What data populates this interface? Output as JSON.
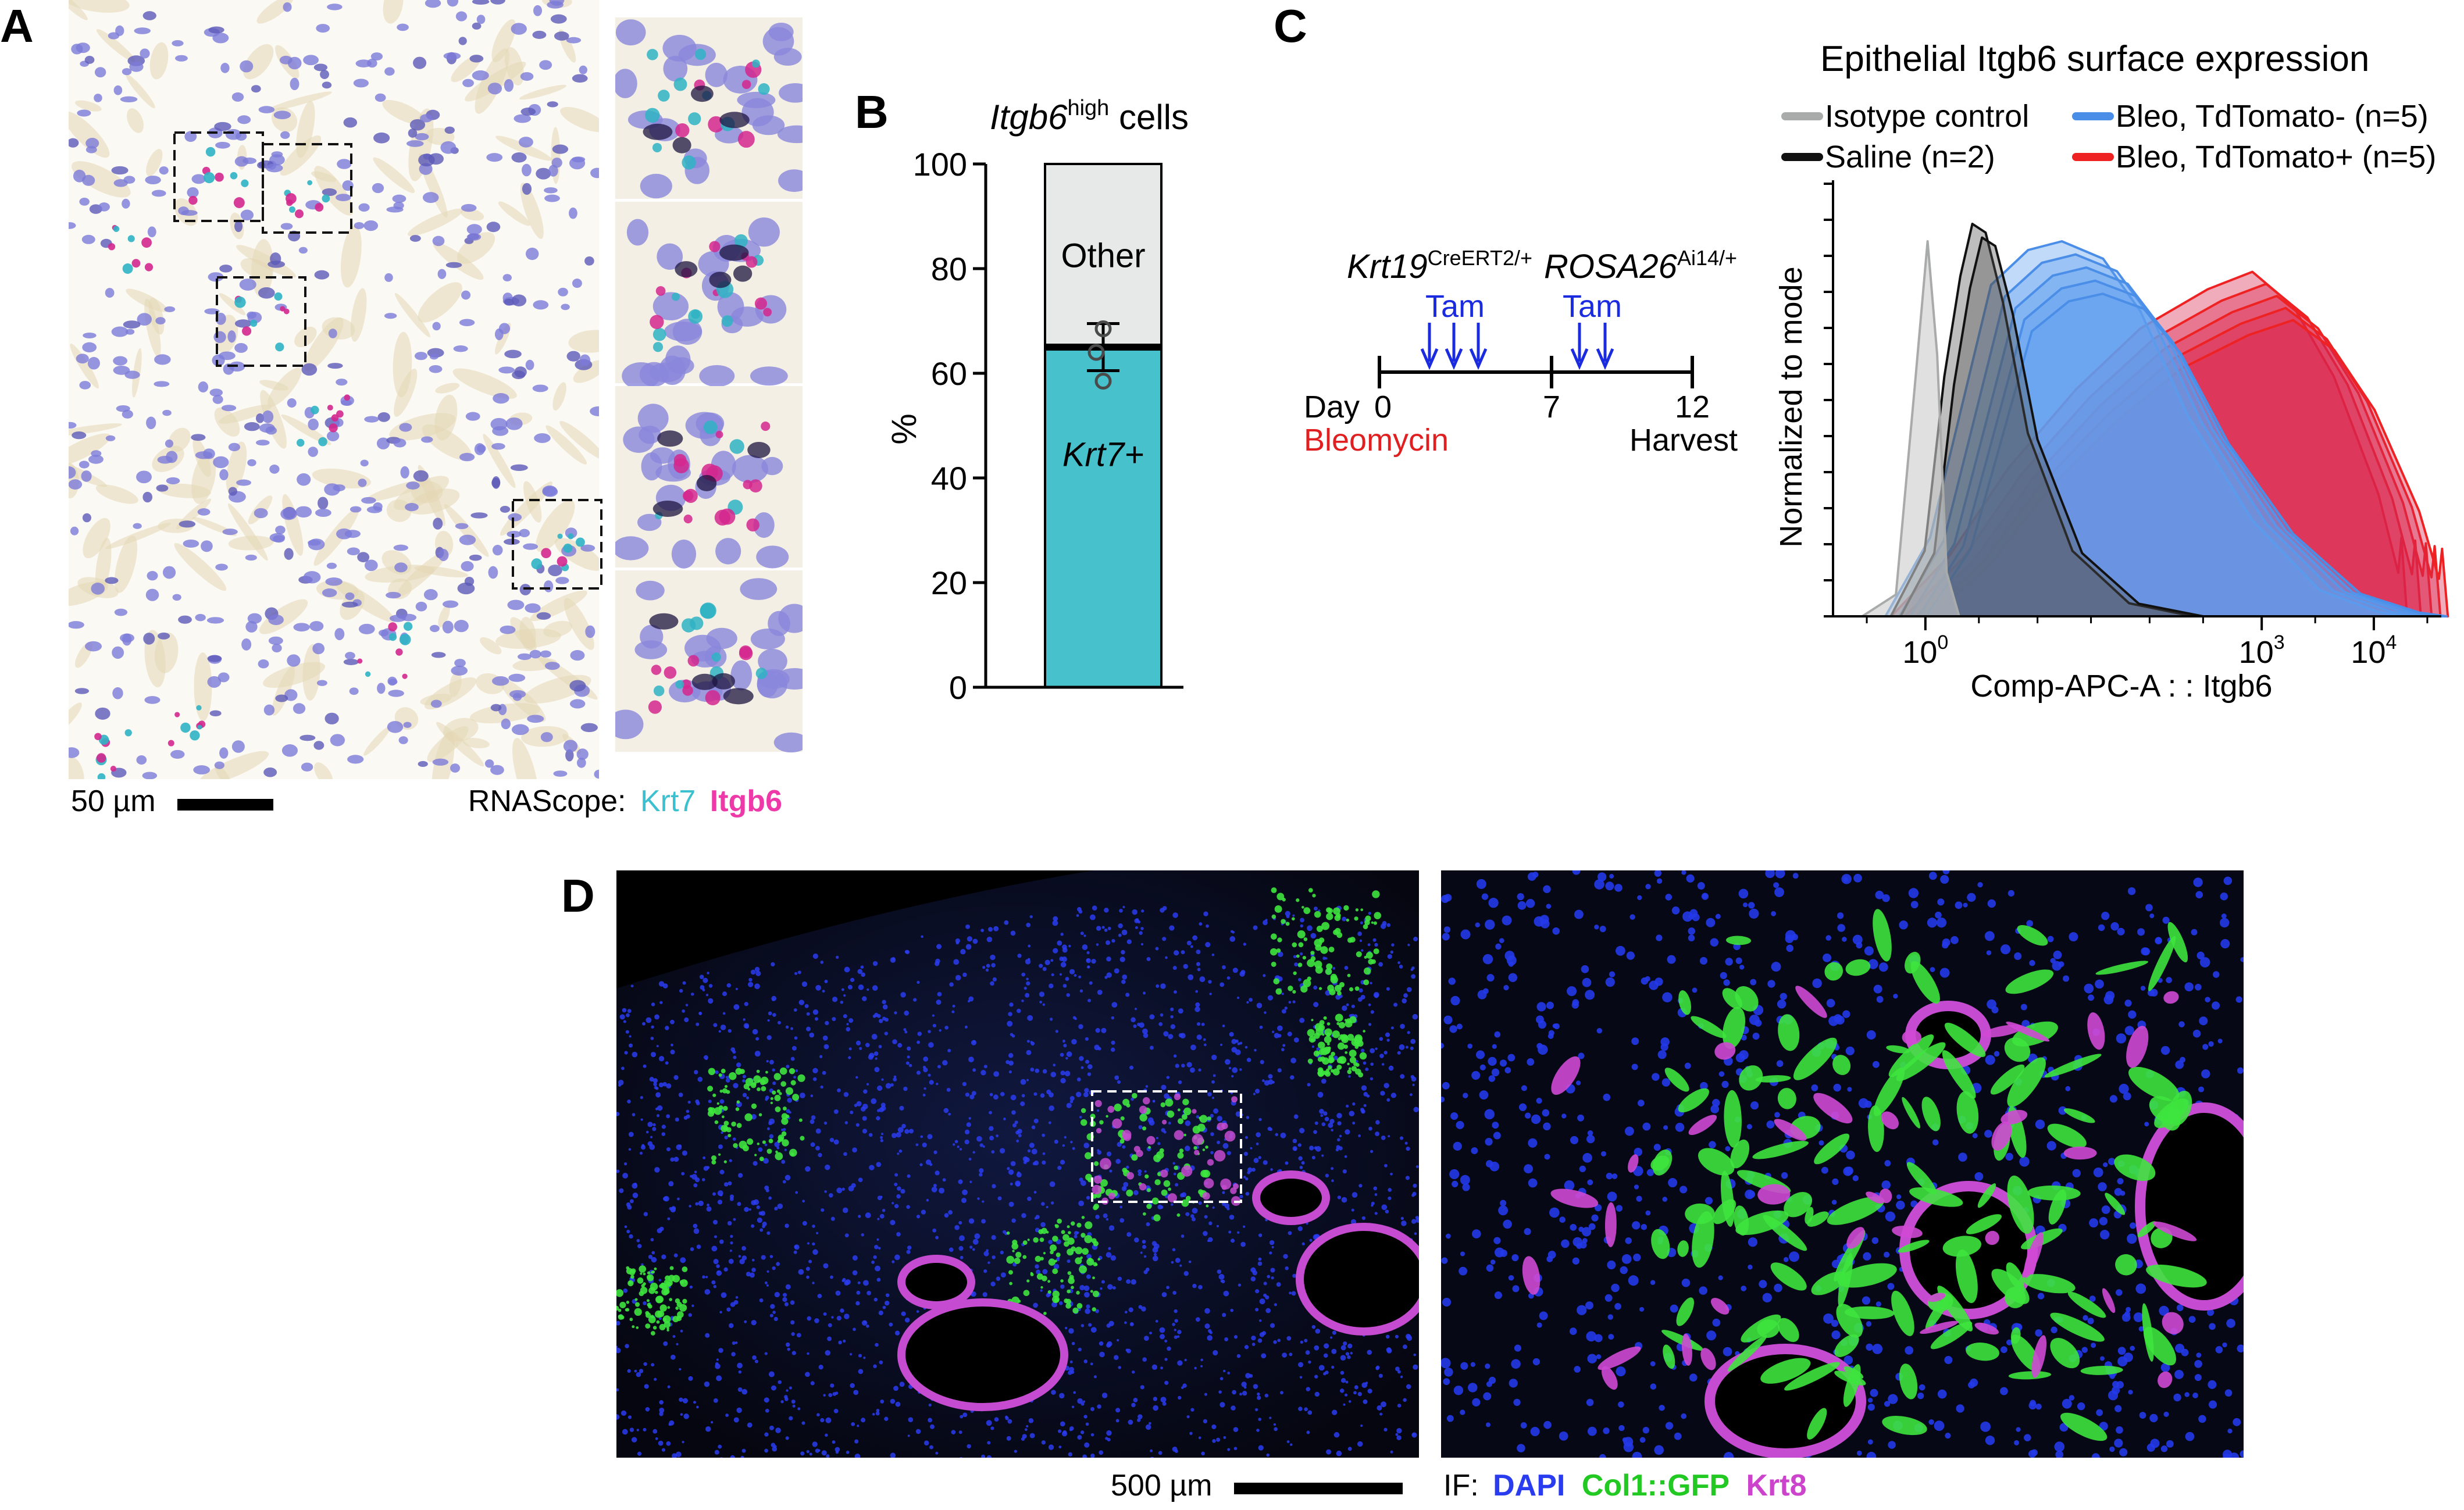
{
  "panels": {
    "a": {
      "label": "A",
      "scalebar": "50 µm",
      "stain_prefix": "RNAScope:",
      "stain_krt7": "Krt7",
      "stain_itgb6": "Itgb6"
    },
    "b": {
      "label": "B",
      "title_gene": "Itgb6",
      "title_sup": "high",
      "title_rest": " cells",
      "ylabel": "%",
      "seg_other": "Other",
      "seg_krt7": "Krt7+"
    },
    "c": {
      "label": "C",
      "gene1": "Krt19",
      "gene1_sup": "CreERT2/+",
      "gene2": "ROSA26",
      "gene2_sup": "Ai14/+",
      "tam1": "Tam",
      "tam2": "Tam",
      "day_label": "Day",
      "days": [
        "0",
        "7",
        "12"
      ],
      "bleomycin": "Bleomycin",
      "harvest": "Harvest",
      "hist_title": "Epithelial Itgb6 surface expression",
      "legend": [
        {
          "name": "Isotype control",
          "color": "#a8aba9"
        },
        {
          "name": "Saline (n=2)",
          "color": "#111111"
        },
        {
          "name": "Bleo, TdTomato- (n=5)",
          "color": "#4a8ee8"
        },
        {
          "name": "Bleo, TdTomato+ (n=5)",
          "color": "#ee2222"
        }
      ],
      "hist_ylabel": "Normalized to mode",
      "hist_xlabel": "Comp-APC-A : : Itgb6",
      "xticks": [
        {
          "base": "10",
          "exp": "0"
        },
        {
          "base": "10",
          "exp": "3"
        },
        {
          "base": "10",
          "exp": "4"
        }
      ]
    },
    "d": {
      "label": "D",
      "scalebar": "500 µm",
      "if_prefix": "IF:",
      "if_dapi": "DAPI",
      "if_col1": "Col1::GFP",
      "if_krt8": "Krt8"
    }
  },
  "colors": {
    "krt7": "#3cc0cf",
    "itgb6": "#ee3aa8",
    "dapi": "#2a3cf0",
    "gfp": "#22dd22",
    "krt8": "#cc44cc",
    "tam": "#1a2be0",
    "bleomycin": "#e02020"
  },
  "chart_data": [
    {
      "type": "bar",
      "title": "Itgb6high cells",
      "ylabel": "%",
      "ylim": [
        0,
        100
      ],
      "yticks": [
        0,
        20,
        40,
        60,
        80,
        100
      ],
      "categories": [
        "Itgb6high cells"
      ],
      "series": [
        {
          "name": "Krt7+",
          "values": [
            65
          ]
        },
        {
          "name": "Other",
          "values": [
            35
          ]
        }
      ],
      "error_bar": {
        "mean": 65,
        "upper": 69.5,
        "lower": 60.5
      },
      "points": [
        68.5,
        64,
        58.5
      ]
    },
    {
      "type": "area",
      "title": "Epithelial Itgb6 surface expression",
      "xlabel": "Comp-APC-A : : Itgb6",
      "ylabel": "Normalized to mode",
      "xscale": "log",
      "xlim": [
        0.15,
        40000
      ],
      "ylim": [
        0,
        1
      ],
      "series": [
        {
          "name": "Isotype control",
          "color": "#a8aba9",
          "points": [
            [
              0.3,
              0
            ],
            [
              0.6,
              0.05
            ],
            [
              0.9,
              0.55
            ],
            [
              1.15,
              0.86
            ],
            [
              1.4,
              0.6
            ],
            [
              1.7,
              0.1
            ],
            [
              2.2,
              0
            ]
          ]
        },
        {
          "name": "Saline (n=2)",
          "color": "#111111",
          "points": [
            [
              0.6,
              0
            ],
            [
              1.2,
              0.15
            ],
            [
              1.8,
              0.55
            ],
            [
              2.5,
              0.78
            ],
            [
              3.2,
              0.9
            ],
            [
              4.2,
              0.88
            ],
            [
              6,
              0.72
            ],
            [
              10,
              0.42
            ],
            [
              25,
              0.15
            ],
            [
              80,
              0.03
            ],
            [
              300,
              0
            ]
          ]
        },
        {
          "name": "Bleo, TdTomato- (n=5)",
          "color": "#4a8ee8",
          "points": [
            [
              0.8,
              0
            ],
            [
              2,
              0.18
            ],
            [
              4,
              0.5
            ],
            [
              7,
              0.76
            ],
            [
              15,
              0.84
            ],
            [
              30,
              0.86
            ],
            [
              70,
              0.82
            ],
            [
              150,
              0.7
            ],
            [
              400,
              0.46
            ],
            [
              1500,
              0.22
            ],
            [
              6000,
              0.06
            ],
            [
              20000,
              0.01
            ],
            [
              35000,
              0
            ]
          ]
        },
        {
          "name": "Bleo, TdTomato+ (n=5)",
          "color": "#ee2222",
          "points": [
            [
              0.9,
              0
            ],
            [
              3,
              0.14
            ],
            [
              10,
              0.34
            ],
            [
              40,
              0.52
            ],
            [
              150,
              0.66
            ],
            [
              600,
              0.75
            ],
            [
              1500,
              0.79
            ],
            [
              3500,
              0.71
            ],
            [
              8000,
              0.55
            ],
            [
              20000,
              0.28
            ],
            [
              30000,
              0.1
            ],
            [
              32000,
              0.18
            ],
            [
              36000,
              0
            ]
          ]
        }
      ]
    }
  ]
}
